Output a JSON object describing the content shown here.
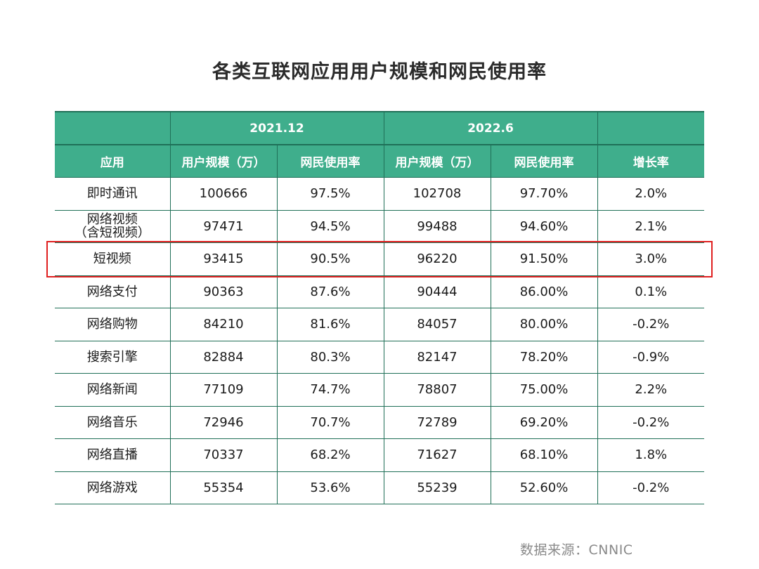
{
  "title": "各类互联网应用用户规模和网民使用率",
  "table": {
    "period_headers": [
      "2021.12",
      "2022.6"
    ],
    "column_headers": [
      "应用",
      "用户规模（万）",
      "网民使用率",
      "用户规模（万）",
      "网民使用率",
      "增长率"
    ],
    "rows": [
      {
        "app": [
          "即时通讯"
        ],
        "users_2021": "100666",
        "rate_2021": "97.5%",
        "users_2022": "102708",
        "rate_2022": "97.70%",
        "growth": "2.0%"
      },
      {
        "app": [
          "网络视频",
          "（含短视频）"
        ],
        "users_2021": "97471",
        "rate_2021": "94.5%",
        "users_2022": "99488",
        "rate_2022": "94.60%",
        "growth": "2.1%"
      },
      {
        "app": [
          "短视频"
        ],
        "users_2021": "93415",
        "rate_2021": "90.5%",
        "users_2022": "96220",
        "rate_2022": "91.50%",
        "growth": "3.0%"
      },
      {
        "app": [
          "网络支付"
        ],
        "users_2021": "90363",
        "rate_2021": "87.6%",
        "users_2022": "90444",
        "rate_2022": "86.00%",
        "growth": "0.1%"
      },
      {
        "app": [
          "网络购物"
        ],
        "users_2021": "84210",
        "rate_2021": "81.6%",
        "users_2022": "84057",
        "rate_2022": "80.00%",
        "growth": "-0.2%"
      },
      {
        "app": [
          "搜索引擎"
        ],
        "users_2021": "82884",
        "rate_2021": "80.3%",
        "users_2022": "82147",
        "rate_2022": "78.20%",
        "growth": "-0.9%"
      },
      {
        "app": [
          "网络新闻"
        ],
        "users_2021": "77109",
        "rate_2021": "74.7%",
        "users_2022": "78807",
        "rate_2022": "75.00%",
        "growth": "2.2%"
      },
      {
        "app": [
          "网络音乐"
        ],
        "users_2021": "72946",
        "rate_2021": "70.7%",
        "users_2022": "72789",
        "rate_2022": "69.20%",
        "growth": "-0.2%"
      },
      {
        "app": [
          "网络直播"
        ],
        "users_2021": "70337",
        "rate_2021": "68.2%",
        "users_2022": "71627",
        "rate_2022": "68.10%",
        "growth": "1.8%"
      },
      {
        "app": [
          "网络游戏"
        ],
        "users_2021": "55354",
        "rate_2021": "53.6%",
        "users_2022": "55239",
        "rate_2022": "52.60%",
        "growth": "-0.2%"
      }
    ],
    "highlighted_row": 2
  },
  "source": "数据来源：CNNIC",
  "colors": {
    "header_fill": "#3fae8c",
    "rule": "#1f6f57",
    "highlight": "#e02020"
  }
}
